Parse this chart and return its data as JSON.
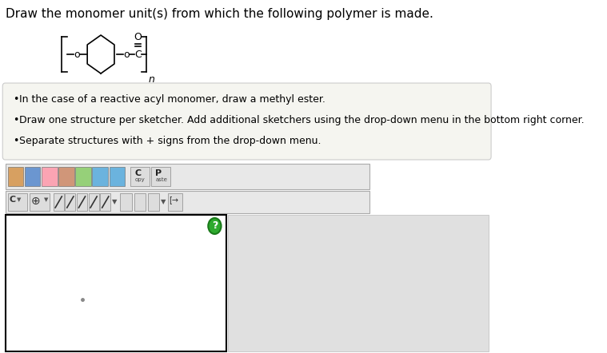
{
  "title": "Draw the monomer unit(s) from which the following polymer is made.",
  "bullet_points": [
    "In the case of a reactive acyl monomer, draw a methyl ester.",
    "Draw one structure per sketcher. Add additional sketchers using the drop-down menu in the bottom right corner.",
    "Separate structures with + signs from the drop-down menu."
  ],
  "bg_color": "#ffffff",
  "bullet_box_bg": "#f5f5f0",
  "bullet_box_border": "#cccccc",
  "toolbar_bg": "#e8e8e8",
  "toolbar_border": "#aaaaaa",
  "sketcher_bg": "#ffffff",
  "sketcher_border": "#000000",
  "gray_area_bg": "#e0e0e0",
  "text_color": "#000000",
  "structure_color": "#000000",
  "qmark_bg": "#2eaa2e",
  "qmark_border": "#1a7a1a",
  "dot_color": "#888888",
  "title_fontsize": 11,
  "bullet_fontsize": 9,
  "struct_lw": 1.2
}
